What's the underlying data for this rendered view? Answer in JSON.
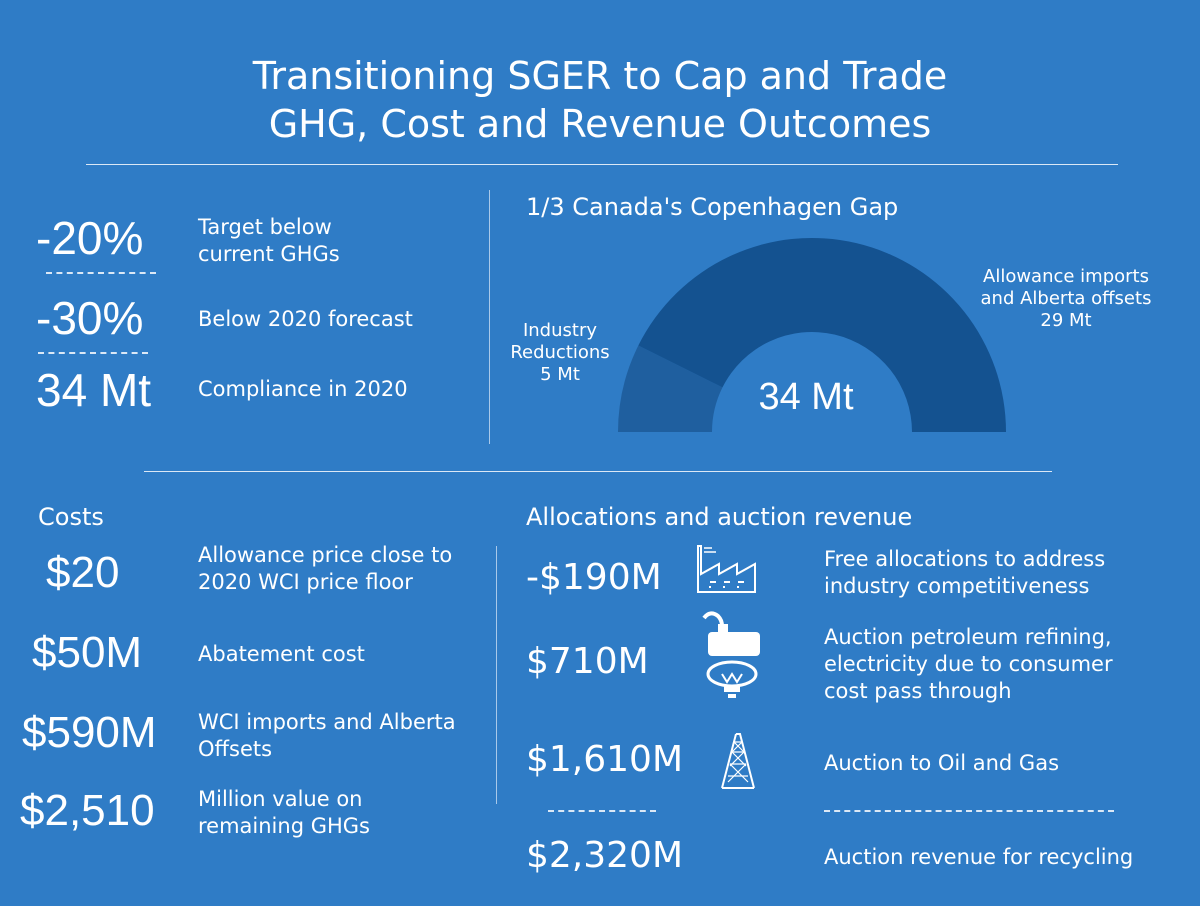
{
  "title": "Transitioning SGER to Cap and Trade\n GHG, Cost and Revenue Outcomes",
  "targets": [
    {
      "value": "-20%",
      "label": "Target below\ncurrent GHGs"
    },
    {
      "value": "-30%",
      "label": "Below 2020 forecast"
    },
    {
      "value": "34 Mt",
      "label": "Compliance in 2020"
    }
  ],
  "gap": {
    "heading": "1/3 Canada's Copenhagen Gap",
    "industry_label": "Industry\nReductions\n5 Mt",
    "imports_label": "Allowance imports\nand Alberta offsets\n29 Mt",
    "center_value": "34 Mt",
    "industry_mt": 5,
    "imports_mt": 29,
    "colors": {
      "industry": "#1f5f9f",
      "imports": "#145290"
    }
  },
  "costs": {
    "heading": "Costs",
    "items": [
      {
        "value": "$20",
        "label": "Allowance price close to\n2020 WCI price floor"
      },
      {
        "value": "$50M",
        "label": "Abatement cost"
      },
      {
        "value": "$590M",
        "label": "WCI imports and Alberta\nOffsets"
      },
      {
        "value": "$2,510",
        "label": "Million value on\nremaining GHGs"
      }
    ]
  },
  "allocations": {
    "heading": "Allocations and auction revenue",
    "items": [
      {
        "value": "-$190M",
        "icon": "factory-icon",
        "label": "Free allocations to address\nindustry competitiveness"
      },
      {
        "value": "$710M",
        "icon": "fuel-and-lightbulb-icon",
        "label": "Auction petroleum refining,\nelectricity due to consumer\ncost pass through"
      },
      {
        "value": "$1,610M",
        "icon": "oil-derrick-icon",
        "label": "Auction to Oil and Gas"
      },
      {
        "value": "$2,320M",
        "label": "Auction revenue for recycling"
      }
    ]
  }
}
